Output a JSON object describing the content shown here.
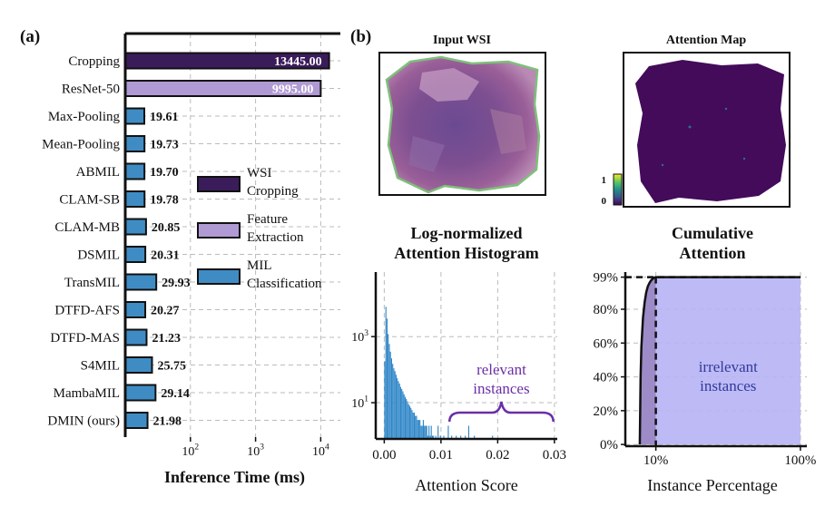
{
  "panel_labels": {
    "a": "(a)",
    "b": "(b)"
  },
  "chart_data": [
    {
      "type": "bar",
      "orientation": "horizontal",
      "xscale": "log",
      "xlim": [
        10,
        20000
      ],
      "xlabel": "Inference Time (ms)",
      "xticks": [
        {
          "value": 100,
          "base": "10",
          "exp": "2"
        },
        {
          "value": 1000,
          "base": "10",
          "exp": "3"
        },
        {
          "value": 10000,
          "base": "10",
          "exp": "4"
        }
      ],
      "grid": true,
      "legend_position": "center-right",
      "series": [
        {
          "name": "WSI Cropping",
          "name_lines": [
            "WSI",
            "Cropping"
          ],
          "color": "#3b1c5a"
        },
        {
          "name": "Feature Extraction",
          "name_lines": [
            "Feature",
            "Extraction"
          ],
          "color": "#b09ad3"
        },
        {
          "name": "MIL Classification",
          "name_lines": [
            "MIL",
            "Classification"
          ],
          "color": "#3f8cc4"
        }
      ],
      "bars": [
        {
          "label": "Cropping",
          "value": 13445.0,
          "value_label": "13445.00",
          "series": 0
        },
        {
          "label": "ResNet-50",
          "value": 9995.0,
          "value_label": "9995.00",
          "series": 1
        },
        {
          "label": "Max-Pooling",
          "value": 19.61,
          "value_label": "19.61",
          "series": 2
        },
        {
          "label": "Mean-Pooling",
          "value": 19.73,
          "value_label": "19.73",
          "series": 2
        },
        {
          "label": "ABMIL",
          "value": 19.7,
          "value_label": "19.70",
          "series": 2
        },
        {
          "label": "CLAM-SB",
          "value": 19.78,
          "value_label": "19.78",
          "series": 2
        },
        {
          "label": "CLAM-MB",
          "value": 20.85,
          "value_label": "20.85",
          "series": 2
        },
        {
          "label": "DSMIL",
          "value": 20.31,
          "value_label": "20.31",
          "series": 2
        },
        {
          "label": "TransMIL",
          "value": 29.93,
          "value_label": "29.93",
          "series": 2
        },
        {
          "label": "DTFD-AFS",
          "value": 20.27,
          "value_label": "20.27",
          "series": 2
        },
        {
          "label": "DTFD-MAS",
          "value": 21.23,
          "value_label": "21.23",
          "series": 2
        },
        {
          "label": "S4MIL",
          "value": 25.75,
          "value_label": "25.75",
          "series": 2
        },
        {
          "label": "MambaMIL",
          "value": 29.14,
          "value_label": "29.14",
          "series": 2
        },
        {
          "label": "DMIN (ours)",
          "value": 21.98,
          "value_label": "21.98",
          "series": 2
        }
      ]
    },
    {
      "type": "bar",
      "title_lines": [
        "Log-normalized",
        "Attention Histogram"
      ],
      "xlabel": "Attention Score",
      "xlim": [
        -0.0015,
        0.0305
      ],
      "xticks": [
        "0.00",
        "0.01",
        "0.02",
        "0.03"
      ],
      "yscale": "log",
      "ylim": [
        0.8,
        90000
      ],
      "yticks": [
        {
          "value": 10,
          "base": "10",
          "exp": "1"
        },
        {
          "value": 1000,
          "base": "10",
          "exp": "3"
        }
      ],
      "grid": true,
      "color": "#2f86c8",
      "bins": [
        {
          "x": 0.0,
          "count": 180
        },
        {
          "x": 0.0002,
          "count": 8000
        },
        {
          "x": 0.0004,
          "count": 3500
        },
        {
          "x": 0.0006,
          "count": 1200
        },
        {
          "x": 0.0008,
          "count": 600
        },
        {
          "x": 0.001,
          "count": 350
        },
        {
          "x": 0.0012,
          "count": 220
        },
        {
          "x": 0.0014,
          "count": 150
        },
        {
          "x": 0.0016,
          "count": 110
        },
        {
          "x": 0.0018,
          "count": 90
        },
        {
          "x": 0.002,
          "count": 70
        },
        {
          "x": 0.0022,
          "count": 55
        },
        {
          "x": 0.0024,
          "count": 45
        },
        {
          "x": 0.0026,
          "count": 38
        },
        {
          "x": 0.0028,
          "count": 30
        },
        {
          "x": 0.003,
          "count": 26
        },
        {
          "x": 0.0032,
          "count": 22
        },
        {
          "x": 0.0034,
          "count": 18
        },
        {
          "x": 0.0036,
          "count": 15
        },
        {
          "x": 0.0038,
          "count": 13
        },
        {
          "x": 0.004,
          "count": 11
        },
        {
          "x": 0.0042,
          "count": 9
        },
        {
          "x": 0.0044,
          "count": 8
        },
        {
          "x": 0.0046,
          "count": 7
        },
        {
          "x": 0.0048,
          "count": 6
        },
        {
          "x": 0.005,
          "count": 5
        },
        {
          "x": 0.0052,
          "count": 5
        },
        {
          "x": 0.0054,
          "count": 4
        },
        {
          "x": 0.0056,
          "count": 4
        },
        {
          "x": 0.0058,
          "count": 3
        },
        {
          "x": 0.006,
          "count": 3
        },
        {
          "x": 0.0062,
          "count": 3
        },
        {
          "x": 0.0064,
          "count": 2
        },
        {
          "x": 0.0066,
          "count": 2
        },
        {
          "x": 0.0068,
          "count": 3
        },
        {
          "x": 0.007,
          "count": 2
        },
        {
          "x": 0.0072,
          "count": 2
        },
        {
          "x": 0.0074,
          "count": 2
        },
        {
          "x": 0.0076,
          "count": 1
        },
        {
          "x": 0.0078,
          "count": 2
        },
        {
          "x": 0.008,
          "count": 1
        },
        {
          "x": 0.0082,
          "count": 2
        },
        {
          "x": 0.0084,
          "count": 1
        },
        {
          "x": 0.0086,
          "count": 1
        },
        {
          "x": 0.009,
          "count": 1
        },
        {
          "x": 0.0094,
          "count": 2
        },
        {
          "x": 0.0098,
          "count": 1
        },
        {
          "x": 0.0104,
          "count": 1
        },
        {
          "x": 0.0112,
          "count": 2
        },
        {
          "x": 0.0118,
          "count": 1
        },
        {
          "x": 0.0126,
          "count": 1
        },
        {
          "x": 0.0134,
          "count": 1
        },
        {
          "x": 0.0142,
          "count": 1
        },
        {
          "x": 0.0148,
          "count": 2
        },
        {
          "x": 0.0158,
          "count": 1
        },
        {
          "x": 0.019,
          "count": 1
        }
      ],
      "annotation": {
        "lines": [
          "relevant",
          "instances"
        ],
        "color": "#6a2fa8",
        "x_range": [
          0.0115,
          0.0298
        ]
      }
    },
    {
      "type": "area",
      "title_lines": [
        "Cumulative",
        "Attention"
      ],
      "xlabel": "Instance Percentage",
      "xlim": [
        -9,
        104
      ],
      "xticks": [
        {
          "value": 10,
          "label": "10%"
        },
        {
          "value": 100,
          "label": "100%"
        }
      ],
      "ylim": [
        -1,
        102
      ],
      "yticks": [
        "0%",
        "20%",
        "40%",
        "60%",
        "80%",
        "99%"
      ],
      "ytick_values": [
        0,
        20,
        40,
        60,
        80,
        99
      ],
      "grid": true,
      "x": [
        0,
        0.5,
        1,
        2,
        3,
        4,
        5,
        6,
        7,
        8,
        9,
        10,
        100
      ],
      "y": [
        0,
        40,
        58,
        75,
        84,
        90,
        93.5,
        95.5,
        97,
        98,
        98.7,
        99,
        99
      ],
      "threshold_x": 10,
      "threshold_y": 99,
      "relevant_color": "#9d8bc8",
      "irrelevant_color": "#b7b3f5",
      "annotation": {
        "lines": [
          "irrelevant",
          "instances"
        ],
        "color": "#2f3b9a"
      }
    }
  ],
  "images": {
    "input_wsi": {
      "title": "Input WSI"
    },
    "attention_map": {
      "title": "Attention Map",
      "colorbar": {
        "max": "1",
        "min": "0"
      }
    }
  }
}
